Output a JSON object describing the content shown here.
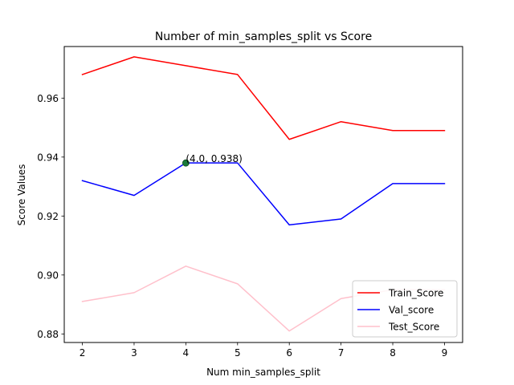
{
  "chart_data": {
    "type": "line",
    "title": "Number of min_samples_split vs Score",
    "xlabel": "Num min_samples_split",
    "ylabel": "Score Values",
    "x": [
      2,
      3,
      4,
      5,
      6,
      7,
      8,
      9
    ],
    "xticks": [
      2,
      3,
      4,
      5,
      6,
      7,
      8,
      9
    ],
    "yticks": [
      0.88,
      0.9,
      0.92,
      0.94,
      0.96
    ],
    "xlim": [
      1.65,
      9.35
    ],
    "ylim": [
      0.8771,
      0.9775
    ],
    "grid": false,
    "legend_position": "lower-right",
    "series": [
      {
        "name": "Train_Score",
        "color": "#ff0000",
        "values": [
          0.968,
          0.974,
          0.971,
          0.968,
          0.946,
          0.952,
          0.949,
          0.949
        ]
      },
      {
        "name": "Val_score",
        "color": "#0000ff",
        "values": [
          0.932,
          0.927,
          0.938,
          0.938,
          0.917,
          0.919,
          0.931,
          0.931
        ]
      },
      {
        "name": "Test_Score",
        "color": "#ffc0cb",
        "values": [
          0.891,
          0.894,
          0.903,
          0.897,
          0.881,
          0.892,
          0.895,
          0.895
        ]
      }
    ],
    "highlight": {
      "x": 4.0,
      "y": 0.938,
      "label": "(4.0, 0.938)",
      "color": "#1a7a3a"
    }
  }
}
